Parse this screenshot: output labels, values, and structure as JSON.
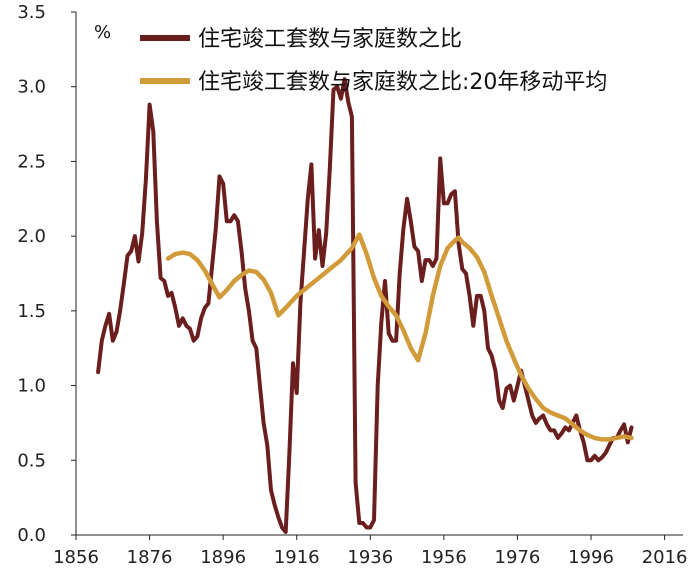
{
  "chart_data": {
    "type": "line",
    "unit_label": "%",
    "xlabel": "",
    "ylabel": "",
    "xlim": [
      1856,
      2021
    ],
    "ylim": [
      0,
      3.5
    ],
    "x_ticks": [
      "1856",
      "1876",
      "1896",
      "1916",
      "1936",
      "1956",
      "1976",
      "1996",
      "2016"
    ],
    "y_ticks": [
      "0.0",
      "0.5",
      "1.0",
      "1.5",
      "2.0",
      "2.5",
      "3.0",
      "3.5"
    ],
    "grid": false,
    "legend_position": "top-left",
    "series": [
      {
        "name": "住宅竣工套数与家庭数之比",
        "color": "#6b1e1e",
        "points": [
          [
            1862,
            1.09
          ],
          [
            1863,
            1.3
          ],
          [
            1864,
            1.4
          ],
          [
            1865,
            1.48
          ],
          [
            1866,
            1.3
          ],
          [
            1867,
            1.36
          ],
          [
            1868,
            1.5
          ],
          [
            1869,
            1.68
          ],
          [
            1870,
            1.87
          ],
          [
            1871,
            1.9
          ],
          [
            1872,
            2.0
          ],
          [
            1873,
            1.83
          ],
          [
            1874,
            2.02
          ],
          [
            1875,
            2.38
          ],
          [
            1876,
            2.88
          ],
          [
            1877,
            2.7
          ],
          [
            1878,
            2.1
          ],
          [
            1879,
            1.72
          ],
          [
            1880,
            1.7
          ],
          [
            1881,
            1.6
          ],
          [
            1882,
            1.62
          ],
          [
            1883,
            1.52
          ],
          [
            1884,
            1.4
          ],
          [
            1885,
            1.45
          ],
          [
            1886,
            1.4
          ],
          [
            1887,
            1.38
          ],
          [
            1888,
            1.3
          ],
          [
            1889,
            1.33
          ],
          [
            1890,
            1.45
          ],
          [
            1891,
            1.52
          ],
          [
            1892,
            1.55
          ],
          [
            1893,
            1.8
          ],
          [
            1894,
            2.05
          ],
          [
            1895,
            2.4
          ],
          [
            1896,
            2.35
          ],
          [
            1897,
            2.1
          ],
          [
            1898,
            2.1
          ],
          [
            1899,
            2.14
          ],
          [
            1900,
            2.1
          ],
          [
            1901,
            1.9
          ],
          [
            1902,
            1.65
          ],
          [
            1903,
            1.5
          ],
          [
            1904,
            1.3
          ],
          [
            1905,
            1.25
          ],
          [
            1906,
            1.0
          ],
          [
            1907,
            0.75
          ],
          [
            1908,
            0.6
          ],
          [
            1909,
            0.3
          ],
          [
            1910,
            0.2
          ],
          [
            1911,
            0.12
          ],
          [
            1912,
            0.05
          ],
          [
            1913,
            0.02
          ],
          [
            1914,
            0.55
          ],
          [
            1915,
            1.15
          ],
          [
            1916,
            0.95
          ],
          [
            1917,
            1.55
          ],
          [
            1918,
            1.9
          ],
          [
            1919,
            2.25
          ],
          [
            1920,
            2.48
          ],
          [
            1921,
            1.85
          ],
          [
            1922,
            2.04
          ],
          [
            1923,
            1.8
          ],
          [
            1924,
            2.02
          ],
          [
            1925,
            2.45
          ],
          [
            1926,
            2.98
          ],
          [
            1927,
            3.0
          ],
          [
            1928,
            2.92
          ],
          [
            1929,
            3.05
          ],
          [
            1930,
            2.9
          ],
          [
            1931,
            2.8
          ],
          [
            1932,
            0.35
          ],
          [
            1933,
            0.08
          ],
          [
            1934,
            0.08
          ],
          [
            1935,
            0.05
          ],
          [
            1936,
            0.05
          ],
          [
            1937,
            0.1
          ],
          [
            1938,
            1.0
          ],
          [
            1939,
            1.42
          ],
          [
            1940,
            1.7
          ],
          [
            1941,
            1.35
          ],
          [
            1942,
            1.3
          ],
          [
            1943,
            1.3
          ],
          [
            1944,
            1.75
          ],
          [
            1945,
            2.05
          ],
          [
            1946,
            2.25
          ],
          [
            1947,
            2.1
          ],
          [
            1948,
            1.93
          ],
          [
            1949,
            1.9
          ],
          [
            1950,
            1.7
          ],
          [
            1951,
            1.84
          ],
          [
            1952,
            1.84
          ],
          [
            1953,
            1.8
          ],
          [
            1954,
            1.85
          ],
          [
            1955,
            2.52
          ],
          [
            1956,
            2.22
          ],
          [
            1957,
            2.22
          ],
          [
            1958,
            2.28
          ],
          [
            1959,
            2.3
          ],
          [
            1960,
            1.95
          ],
          [
            1961,
            1.78
          ],
          [
            1962,
            1.75
          ],
          [
            1963,
            1.6
          ],
          [
            1964,
            1.4
          ],
          [
            1965,
            1.6
          ],
          [
            1966,
            1.6
          ],
          [
            1967,
            1.5
          ],
          [
            1968,
            1.25
          ],
          [
            1969,
            1.2
          ],
          [
            1970,
            1.1
          ],
          [
            1971,
            0.9
          ],
          [
            1972,
            0.85
          ],
          [
            1973,
            0.98
          ],
          [
            1974,
            1.0
          ],
          [
            1975,
            0.9
          ],
          [
            1976,
            1.0
          ],
          [
            1977,
            1.1
          ],
          [
            1978,
            1.0
          ],
          [
            1979,
            0.9
          ],
          [
            1980,
            0.8
          ],
          [
            1981,
            0.75
          ],
          [
            1982,
            0.78
          ],
          [
            1983,
            0.8
          ],
          [
            1984,
            0.74
          ],
          [
            1985,
            0.7
          ],
          [
            1986,
            0.7
          ],
          [
            1987,
            0.65
          ],
          [
            1988,
            0.68
          ],
          [
            1989,
            0.72
          ],
          [
            1990,
            0.7
          ],
          [
            1991,
            0.75
          ],
          [
            1992,
            0.8
          ],
          [
            1993,
            0.7
          ],
          [
            1994,
            0.62
          ],
          [
            1995,
            0.5
          ],
          [
            1996,
            0.5
          ],
          [
            1997,
            0.53
          ],
          [
            1998,
            0.5
          ],
          [
            1999,
            0.52
          ],
          [
            2000,
            0.55
          ],
          [
            2001,
            0.6
          ],
          [
            2002,
            0.65
          ],
          [
            2003,
            0.65
          ],
          [
            2004,
            0.7
          ],
          [
            2005,
            0.74
          ],
          [
            2006,
            0.62
          ],
          [
            2007,
            0.72
          ]
        ]
      },
      {
        "name": "住宅竣工套数与家庭数之比:20年移动平均",
        "color": "#d29b3a",
        "points": [
          [
            1881,
            1.85
          ],
          [
            1883,
            1.88
          ],
          [
            1885,
            1.89
          ],
          [
            1887,
            1.88
          ],
          [
            1889,
            1.84
          ],
          [
            1891,
            1.77
          ],
          [
            1893,
            1.68
          ],
          [
            1895,
            1.59
          ],
          [
            1897,
            1.64
          ],
          [
            1899,
            1.7
          ],
          [
            1901,
            1.74
          ],
          [
            1903,
            1.77
          ],
          [
            1905,
            1.76
          ],
          [
            1907,
            1.71
          ],
          [
            1909,
            1.62
          ],
          [
            1911,
            1.47
          ],
          [
            1913,
            1.52
          ],
          [
            1916,
            1.6
          ],
          [
            1919,
            1.66
          ],
          [
            1922,
            1.72
          ],
          [
            1925,
            1.78
          ],
          [
            1928,
            1.84
          ],
          [
            1931,
            1.92
          ],
          [
            1933,
            2.01
          ],
          [
            1935,
            1.88
          ],
          [
            1937,
            1.72
          ],
          [
            1939,
            1.6
          ],
          [
            1941,
            1.53
          ],
          [
            1943,
            1.47
          ],
          [
            1945,
            1.37
          ],
          [
            1947,
            1.25
          ],
          [
            1949,
            1.17
          ],
          [
            1951,
            1.35
          ],
          [
            1953,
            1.6
          ],
          [
            1955,
            1.8
          ],
          [
            1957,
            1.92
          ],
          [
            1959,
            1.97
          ],
          [
            1960,
            1.99
          ],
          [
            1961,
            1.96
          ],
          [
            1963,
            1.92
          ],
          [
            1965,
            1.86
          ],
          [
            1967,
            1.76
          ],
          [
            1969,
            1.6
          ],
          [
            1971,
            1.45
          ],
          [
            1973,
            1.3
          ],
          [
            1975,
            1.18
          ],
          [
            1977,
            1.07
          ],
          [
            1979,
            0.98
          ],
          [
            1981,
            0.91
          ],
          [
            1983,
            0.85
          ],
          [
            1985,
            0.82
          ],
          [
            1987,
            0.8
          ],
          [
            1989,
            0.78
          ],
          [
            1991,
            0.74
          ],
          [
            1993,
            0.7
          ],
          [
            1995,
            0.67
          ],
          [
            1997,
            0.65
          ],
          [
            1999,
            0.64
          ],
          [
            2001,
            0.64
          ],
          [
            2003,
            0.65
          ],
          [
            2005,
            0.66
          ],
          [
            2007,
            0.65
          ]
        ]
      }
    ]
  }
}
